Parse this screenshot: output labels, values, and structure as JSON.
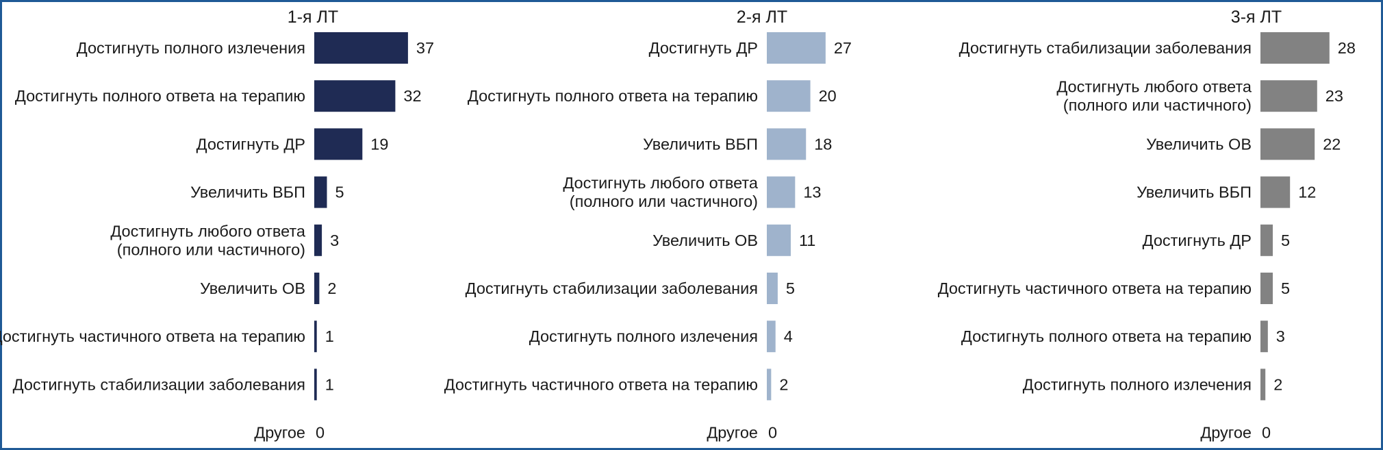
{
  "chart_data": [
    {
      "type": "bar",
      "orientation": "horizontal",
      "title": "1-я ЛТ",
      "color": "#1f2b54",
      "categories": [
        "Достигнуть полного излечения",
        "Достигнуть полного ответа на терапию",
        "Достигнуть ДР",
        "Увеличить ВБП",
        "Достигнуть любого ответа\n(полного или частичного)",
        "Увеличить ОВ",
        "Достигнуть частичного ответа на терапию",
        "Достигнуть стабилизации заболевания",
        "Другое"
      ],
      "values": [
        37,
        32,
        19,
        5,
        3,
        2,
        1,
        1,
        0
      ],
      "xlim": [
        0,
        40
      ]
    },
    {
      "type": "bar",
      "orientation": "horizontal",
      "title": "2-я ЛТ",
      "color": "#9fb3cc",
      "categories": [
        "Достигнуть ДР",
        "Достигнуть полного ответа на терапию",
        "Увеличить ВБП",
        "Достигнуть любого ответа\n(полного или частичного)",
        "Увеличить ОВ",
        "Достигнуть стабилизации заболевания",
        "Достигнуть полного излечения",
        "Достигнуть частичного ответа на терапию",
        "Другое"
      ],
      "values": [
        27,
        20,
        18,
        13,
        11,
        5,
        4,
        2,
        0
      ],
      "xlim": [
        0,
        40
      ]
    },
    {
      "type": "bar",
      "orientation": "horizontal",
      "title": "3-я ЛТ",
      "color": "#828282",
      "categories": [
        "Достигнуть стабилизации заболевания",
        "Достигнуть любого ответа\n(полного или частичного)",
        "Увеличить ОВ",
        "Увеличить ВБП",
        "Достигнуть ДР",
        "Достигнуть частичного ответа на терапию",
        "Достигнуть полного ответа на терапию",
        "Достигнуть полного излечения",
        "Другое"
      ],
      "values": [
        28,
        23,
        22,
        12,
        5,
        5,
        3,
        2,
        0
      ],
      "xlim": [
        0,
        40
      ]
    }
  ]
}
